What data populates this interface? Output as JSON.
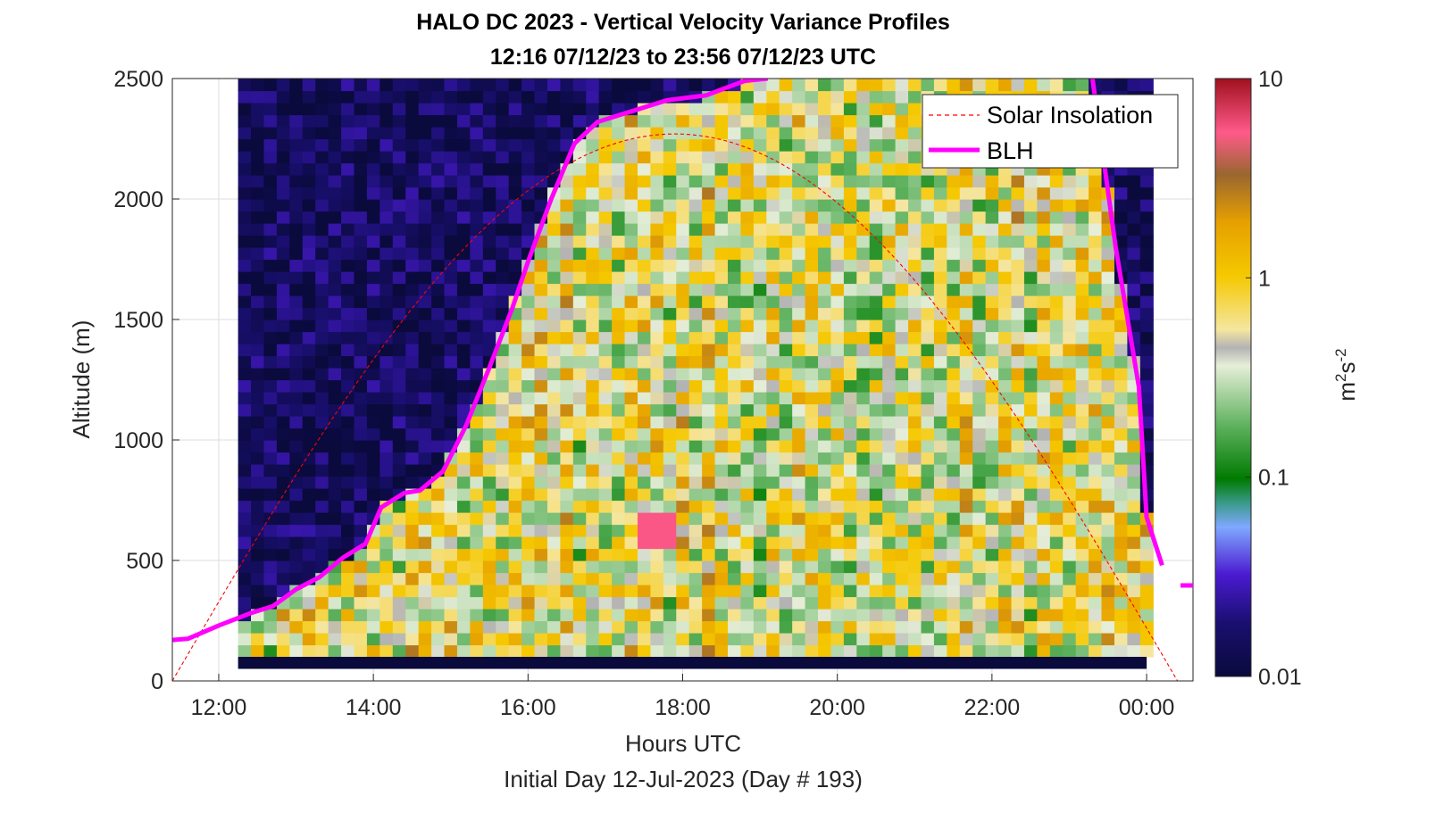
{
  "chart_data": {
    "type": "heatmap",
    "title": "HALO DC 2023 - Vertical Velocity Variance Profiles",
    "subtitle": "12:16 07/12/23 to 23:56 07/12/23  UTC",
    "xlabel": "Hours UTC",
    "ylabel": "Altitude (m)",
    "footer": "Initial Day 12-Jul-2023 (Day # 193)",
    "xlim": [
      11.4,
      24.6
    ],
    "ylim": [
      0,
      2500
    ],
    "x_ticks": [
      {
        "v": 12,
        "label": "12:00"
      },
      {
        "v": 14,
        "label": "14:00"
      },
      {
        "v": 16,
        "label": "16:00"
      },
      {
        "v": 18,
        "label": "18:00"
      },
      {
        "v": 20,
        "label": "20:00"
      },
      {
        "v": 22,
        "label": "22:00"
      },
      {
        "v": 24,
        "label": "00:00"
      }
    ],
    "y_ticks": [
      "0",
      "500",
      "1000",
      "1500",
      "2000",
      "2500"
    ],
    "y_tick_values": [
      0,
      500,
      1000,
      1500,
      2000,
      2500
    ],
    "grid": true,
    "colorbar": {
      "scale": "log",
      "range": [
        0.01,
        10
      ],
      "ticks": [
        {
          "v": 0.01,
          "label": "0.01"
        },
        {
          "v": 0.1,
          "label": "0.1"
        },
        {
          "v": 1,
          "label": "1"
        },
        {
          "v": 10,
          "label": "10"
        }
      ],
      "unit_base": "m",
      "unit_exp1": "2",
      "unit_mid": "s",
      "unit_exp2": "-2"
    },
    "heatmap_extent": {
      "x_start": 12.25,
      "x_end": 24.0,
      "y_start": 100,
      "y_end": 2500
    },
    "legend": {
      "position": "top-right",
      "items": [
        {
          "name": "Solar Insolation",
          "style": "dashed",
          "color": "#ff0000"
        },
        {
          "name": "BLH",
          "style": "solid",
          "color": "#ff00ff"
        }
      ]
    },
    "series": [
      {
        "name": "Solar Insolation",
        "peak_time": 17.3,
        "peak_altitude": 2250,
        "x_range": [
          11.4,
          24.4
        ]
      },
      {
        "name": "BLH",
        "x": [
          11.4,
          11.6,
          12.0,
          12.4,
          12.7,
          13.0,
          13.3,
          13.6,
          13.9,
          14.1,
          14.4,
          14.6,
          14.9,
          15.2,
          15.5,
          15.8,
          16.0,
          16.3,
          16.6,
          16.9,
          17.3,
          17.8,
          18.3,
          18.8,
          19.1,
          23.3,
          23.6,
          23.9,
          24.0,
          24.2
        ],
        "y": [
          170,
          175,
          230,
          280,
          310,
          380,
          430,
          510,
          570,
          720,
          780,
          790,
          870,
          1060,
          1300,
          1550,
          1740,
          2000,
          2230,
          2320,
          2360,
          2410,
          2430,
          2490,
          2500,
          2500,
          1800,
          1220,
          680,
          480
        ]
      }
    ]
  }
}
